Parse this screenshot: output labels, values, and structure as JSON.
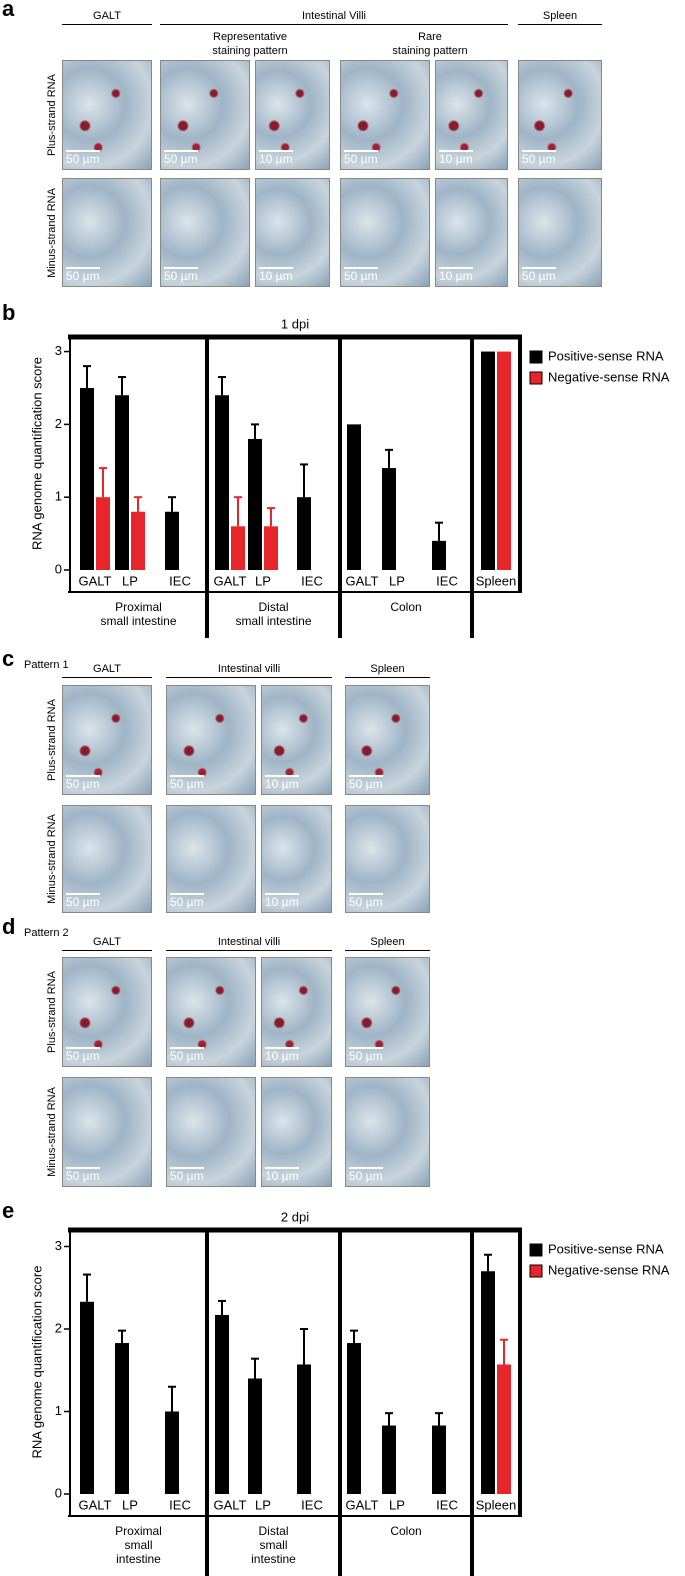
{
  "panels": [
    {
      "letter": "a",
      "headers": [
        "GALT",
        "Intestinal Villi",
        "Spleen"
      ],
      "subheaders": [
        "Representative\nstaining pattern",
        "Rare\nstaining pattern"
      ],
      "rows": [
        {
          "label": "Plus-strand RNA",
          "scale_labels": [
            "50 µm",
            "50 µm",
            "10 µm",
            "50 µm",
            "10 µm",
            "50 µm"
          ]
        },
        {
          "label": "Minus-strand RNA",
          "scale_labels": [
            "50 µm",
            "50 µm",
            "10 µm",
            "50 µm",
            "10 µm",
            "50 µm"
          ]
        }
      ]
    },
    {
      "letter": "c",
      "pattern": "Pattern 1",
      "headers": [
        "GALT",
        "Intestinal villi",
        "Spleen"
      ],
      "rows": [
        {
          "label": "Plus-strand RNA",
          "scale_labels": [
            "50 µm",
            "50 µm",
            "10 µm",
            "50 µm"
          ]
        },
        {
          "label": "Minus-strand RNA",
          "scale_labels": [
            "50 µm",
            "50 µm",
            "10 µm",
            "50 µm"
          ]
        }
      ]
    },
    {
      "letter": "d",
      "pattern": "Pattern 2",
      "headers": [
        "GALT",
        "Intestinal villi",
        "Spleen"
      ],
      "rows": [
        {
          "label": "Plus-strand RNA",
          "scale_labels": [
            "50 µm",
            "50 µm",
            "10 µm",
            "50 µm"
          ]
        },
        {
          "label": "Minus-strand RNA",
          "scale_labels": [
            "50 µm",
            "50 µm",
            "10 µm",
            "50 µm"
          ]
        }
      ]
    }
  ],
  "chart_data": [
    {
      "type": "bar",
      "panel_label": "b",
      "title": "1 dpi",
      "y_label": "RNA genome quantification score",
      "categories": [
        "GALT",
        "LP",
        "IEC",
        "GALT",
        "LP",
        "IEC",
        "GALT",
        "LP",
        "IEC",
        "Spleen"
      ],
      "groups": [
        "Proximal\nsmall intestine",
        "Distal\nsmall intestine",
        "Colon"
      ],
      "series": [
        {
          "name": "Positive-sense RNA",
          "color": "#000000",
          "values": [
            2.5,
            2.4,
            0.8,
            2.4,
            1.8,
            1.0,
            2.0,
            1.4,
            0.4,
            3.0
          ],
          "errors": [
            0.3,
            0.25,
            0.2,
            0.25,
            0.2,
            0.45,
            0,
            0.25,
            0.25,
            0
          ]
        },
        {
          "name": "Negative-sense RNA",
          "color": "#e8252b",
          "values": [
            1.0,
            0.8,
            0,
            0.6,
            0.6,
            0,
            0,
            0,
            0,
            3.0
          ],
          "errors": [
            0.4,
            0.2,
            0,
            0.4,
            0.25,
            0,
            0,
            0,
            0,
            0
          ]
        }
      ],
      "ylim": [
        0,
        3.2
      ],
      "yticks": [
        0,
        1,
        2,
        3
      ]
    },
    {
      "type": "bar",
      "panel_label": "e",
      "title": "2 dpi",
      "y_label": "RNA genome quantification score",
      "categories": [
        "GALT",
        "LP",
        "IEC",
        "GALT",
        "LP",
        "IEC",
        "GALT",
        "LP",
        "IEC",
        "Spleen"
      ],
      "groups": [
        "Proximal\nsmall\nintestine",
        "Distal\nsmall\nintestine",
        "Colon"
      ],
      "series": [
        {
          "name": "Positive-sense RNA",
          "color": "#000000",
          "values": [
            2.33,
            1.83,
            1.0,
            2.17,
            1.4,
            1.57,
            1.83,
            0.83,
            0.83,
            2.7
          ],
          "errors": [
            0.33,
            0.15,
            0.3,
            0.17,
            0.24,
            0.43,
            0.15,
            0.15,
            0.15,
            0.2
          ]
        },
        {
          "name": "Negative-sense RNA",
          "color": "#e8252b",
          "values": [
            0,
            0,
            0,
            0,
            0,
            0,
            0,
            0,
            0,
            1.57
          ],
          "errors": [
            0,
            0,
            0,
            0,
            0,
            0,
            0,
            0,
            0,
            0.3
          ]
        }
      ],
      "ylim": [
        0,
        3.2
      ],
      "yticks": [
        0,
        1,
        2,
        3
      ]
    }
  ]
}
